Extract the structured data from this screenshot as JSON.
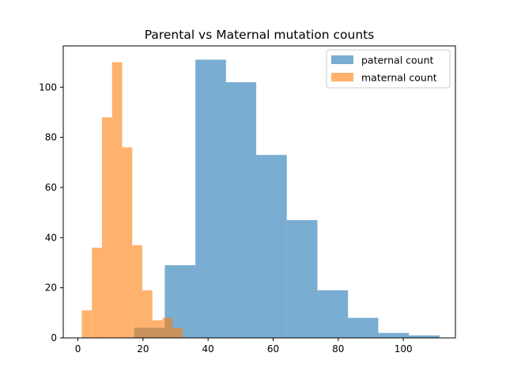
{
  "chart_data": {
    "type": "histogram",
    "title": "Parental vs Maternal mutation counts",
    "xlabel": "",
    "ylabel": "",
    "xlim": [
      -4.5,
      116
    ],
    "ylim": [
      0,
      116.5
    ],
    "xticks": [
      0,
      20,
      40,
      60,
      80,
      100
    ],
    "yticks": [
      0,
      20,
      40,
      60,
      80,
      100
    ],
    "grid": false,
    "legend_position": "top-right",
    "series": [
      {
        "name": "paternal count",
        "color": "#1f77b4",
        "opacity": 0.6,
        "bins": [
          {
            "x0": 17.3,
            "x1": 26.7,
            "count": 4
          },
          {
            "x0": 26.7,
            "x1": 36.1,
            "count": 29
          },
          {
            "x0": 36.1,
            "x1": 45.5,
            "count": 111
          },
          {
            "x0": 45.5,
            "x1": 54.8,
            "count": 102
          },
          {
            "x0": 54.8,
            "x1": 64.2,
            "count": 73
          },
          {
            "x0": 64.2,
            "x1": 73.6,
            "count": 47
          },
          {
            "x0": 73.6,
            "x1": 83.0,
            "count": 19
          },
          {
            "x0": 83.0,
            "x1": 92.3,
            "count": 8
          },
          {
            "x0": 92.3,
            "x1": 101.7,
            "count": 2
          },
          {
            "x0": 101.7,
            "x1": 111.1,
            "count": 1
          }
        ]
      },
      {
        "name": "maternal count",
        "color": "#ff7f0e",
        "opacity": 0.6,
        "bins": [
          {
            "x0": 1.2,
            "x1": 4.3,
            "count": 11
          },
          {
            "x0": 4.3,
            "x1": 7.4,
            "count": 36
          },
          {
            "x0": 7.4,
            "x1": 10.5,
            "count": 88
          },
          {
            "x0": 10.5,
            "x1": 13.6,
            "count": 110
          },
          {
            "x0": 13.6,
            "x1": 16.7,
            "count": 76
          },
          {
            "x0": 16.7,
            "x1": 19.8,
            "count": 37
          },
          {
            "x0": 19.8,
            "x1": 22.9,
            "count": 19
          },
          {
            "x0": 22.9,
            "x1": 26.0,
            "count": 7
          },
          {
            "x0": 26.0,
            "x1": 29.1,
            "count": 8
          },
          {
            "x0": 29.1,
            "x1": 32.2,
            "count": 4
          }
        ]
      }
    ]
  }
}
